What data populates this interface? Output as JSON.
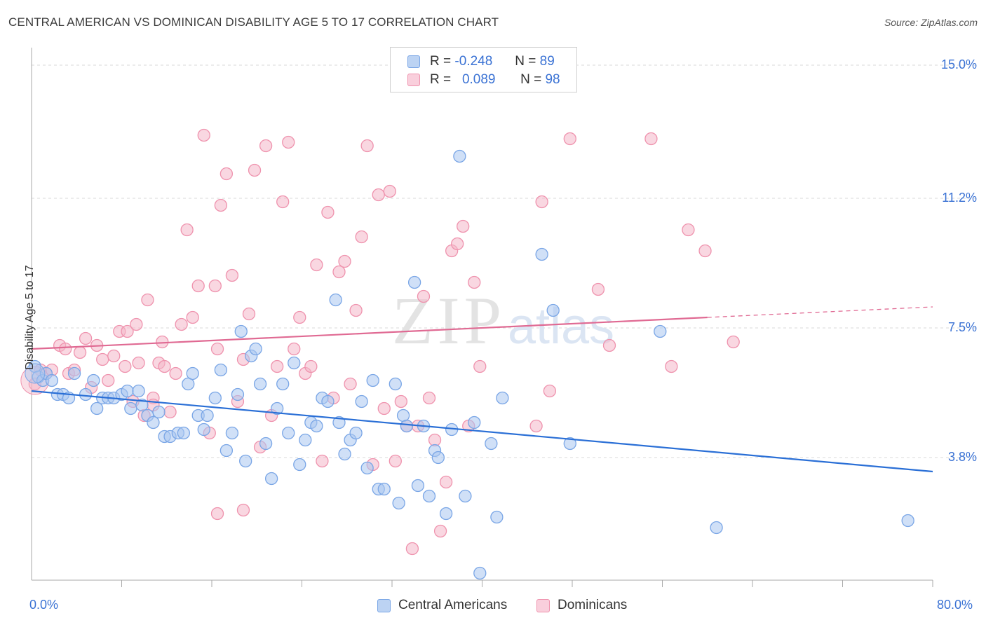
{
  "header": {
    "title": "CENTRAL AMERICAN VS DOMINICAN DISABILITY AGE 5 TO 17 CORRELATION CHART",
    "source": "Source: ZipAtlas.com"
  },
  "watermark": {
    "zip": "ZIP",
    "atlas": "atlas"
  },
  "legend": {
    "rows": [
      {
        "r_label": "R =",
        "r_value": "-0.248",
        "n_label": "N =",
        "n_value": "89",
        "color": "#a9c6f0"
      },
      {
        "r_label": "R =",
        "r_value": "0.089",
        "n_label": "N =",
        "n_value": "98",
        "color": "#f4b6c8"
      }
    ]
  },
  "bottom_legend": [
    {
      "label": "Central Americans",
      "color": "#a9c6f0"
    },
    {
      "label": "Dominicans",
      "color": "#f4b6c8"
    }
  ],
  "chart_data": {
    "type": "scatter",
    "title": "CENTRAL AMERICAN VS DOMINICAN DISABILITY AGE 5 TO 17 CORRELATION CHART",
    "xlabel": "",
    "ylabel": "Disability Age 5 to 17",
    "xlim": [
      0,
      80
    ],
    "ylim": [
      0.3,
      15.3
    ],
    "x_tick_labels": [
      "0.0%",
      "80.0%"
    ],
    "y_ticks": [
      3.8,
      7.5,
      11.2,
      15.0
    ],
    "y_tick_labels": [
      "3.8%",
      "7.5%",
      "11.2%",
      "15.0%"
    ],
    "grid": true,
    "series": [
      {
        "name": "Central Americans",
        "color": "#7aa6e6",
        "fill": "#a9c6f0",
        "line_color": "#2a6fd6",
        "trend": {
          "x": [
            0,
            80
          ],
          "y": [
            5.7,
            3.4
          ]
        },
        "points": [
          [
            0.3,
            6.4
          ],
          [
            0.6,
            6.1
          ],
          [
            1.0,
            6.0
          ],
          [
            1.3,
            6.2
          ],
          [
            1.8,
            6.0
          ],
          [
            2.3,
            5.6
          ],
          [
            2.8,
            5.6
          ],
          [
            3.3,
            5.5
          ],
          [
            3.8,
            6.2
          ],
          [
            4.8,
            5.6
          ],
          [
            5.5,
            6.0
          ],
          [
            5.8,
            5.2
          ],
          [
            6.3,
            5.5
          ],
          [
            6.8,
            5.5
          ],
          [
            7.3,
            5.5
          ],
          [
            8.0,
            5.6
          ],
          [
            8.5,
            5.7
          ],
          [
            8.8,
            5.2
          ],
          [
            9.5,
            5.7
          ],
          [
            9.8,
            5.3
          ],
          [
            10.3,
            5.0
          ],
          [
            10.8,
            4.8
          ],
          [
            11.3,
            5.1
          ],
          [
            11.8,
            4.4
          ],
          [
            12.3,
            4.4
          ],
          [
            13.0,
            4.5
          ],
          [
            13.5,
            4.5
          ],
          [
            13.9,
            5.9
          ],
          [
            14.3,
            6.2
          ],
          [
            14.8,
            5.0
          ],
          [
            15.3,
            4.6
          ],
          [
            15.6,
            5.0
          ],
          [
            16.3,
            5.5
          ],
          [
            16.8,
            6.3
          ],
          [
            17.3,
            4.0
          ],
          [
            17.8,
            4.5
          ],
          [
            18.3,
            5.6
          ],
          [
            18.6,
            7.4
          ],
          [
            19.0,
            3.7
          ],
          [
            19.5,
            6.7
          ],
          [
            19.9,
            6.9
          ],
          [
            20.3,
            5.9
          ],
          [
            20.8,
            4.2
          ],
          [
            21.3,
            3.2
          ],
          [
            21.8,
            5.2
          ],
          [
            22.3,
            5.9
          ],
          [
            22.8,
            4.5
          ],
          [
            23.3,
            6.5
          ],
          [
            23.8,
            3.6
          ],
          [
            24.3,
            4.3
          ],
          [
            24.8,
            4.8
          ],
          [
            25.3,
            4.7
          ],
          [
            25.8,
            5.5
          ],
          [
            26.3,
            5.4
          ],
          [
            27.0,
            8.3
          ],
          [
            27.3,
            4.8
          ],
          [
            27.8,
            3.9
          ],
          [
            28.3,
            4.3
          ],
          [
            28.8,
            4.5
          ],
          [
            29.3,
            5.4
          ],
          [
            29.8,
            3.5
          ],
          [
            30.3,
            6.0
          ],
          [
            30.8,
            2.9
          ],
          [
            31.3,
            2.9
          ],
          [
            32.3,
            5.9
          ],
          [
            32.6,
            2.5
          ],
          [
            33.0,
            5.0
          ],
          [
            33.3,
            4.7
          ],
          [
            34.0,
            8.8
          ],
          [
            34.3,
            3.0
          ],
          [
            34.8,
            4.7
          ],
          [
            35.3,
            2.7
          ],
          [
            35.8,
            4.0
          ],
          [
            36.1,
            3.8
          ],
          [
            36.8,
            2.2
          ],
          [
            37.3,
            4.6
          ],
          [
            38.0,
            12.4
          ],
          [
            38.5,
            2.7
          ],
          [
            39.3,
            4.8
          ],
          [
            39.8,
            0.5
          ],
          [
            40.8,
            4.2
          ],
          [
            41.3,
            2.1
          ],
          [
            41.8,
            5.5
          ],
          [
            45.3,
            9.6
          ],
          [
            46.3,
            8.0
          ],
          [
            47.8,
            4.2
          ],
          [
            55.8,
            7.4
          ],
          [
            60.8,
            1.8
          ],
          [
            77.8,
            2.0
          ]
        ]
      },
      {
        "name": "Dominicans",
        "color": "#ef93ae",
        "fill": "#f4b6c8",
        "line_color": "#e06a93",
        "trend": {
          "x": [
            0,
            60
          ],
          "y": [
            6.9,
            7.8
          ]
        },
        "trend_dashed": {
          "x": [
            60,
            80
          ],
          "y": [
            7.8,
            8.1
          ]
        },
        "points": [
          [
            0.3,
            5.9
          ],
          [
            0.8,
            6.3
          ],
          [
            1.3,
            6.2
          ],
          [
            1.8,
            6.3
          ],
          [
            2.5,
            7.0
          ],
          [
            3.0,
            6.9
          ],
          [
            3.3,
            6.2
          ],
          [
            3.8,
            6.3
          ],
          [
            4.3,
            6.8
          ],
          [
            4.8,
            7.2
          ],
          [
            5.3,
            5.8
          ],
          [
            5.8,
            7.0
          ],
          [
            6.3,
            6.6
          ],
          [
            6.8,
            6.0
          ],
          [
            7.3,
            6.7
          ],
          [
            7.8,
            7.4
          ],
          [
            8.3,
            6.4
          ],
          [
            8.5,
            7.4
          ],
          [
            9.0,
            5.4
          ],
          [
            9.3,
            7.6
          ],
          [
            9.5,
            6.5
          ],
          [
            10.0,
            5.0
          ],
          [
            10.3,
            8.3
          ],
          [
            10.8,
            5.5
          ],
          [
            11.3,
            6.5
          ],
          [
            11.6,
            7.1
          ],
          [
            11.8,
            6.4
          ],
          [
            12.3,
            5.1
          ],
          [
            12.8,
            6.2
          ],
          [
            13.3,
            7.6
          ],
          [
            13.8,
            10.3
          ],
          [
            14.3,
            7.8
          ],
          [
            14.8,
            8.7
          ],
          [
            15.3,
            13.0
          ],
          [
            15.8,
            4.5
          ],
          [
            16.3,
            8.7
          ],
          [
            16.5,
            6.9
          ],
          [
            16.8,
            11.0
          ],
          [
            17.3,
            11.9
          ],
          [
            17.8,
            9.0
          ],
          [
            18.3,
            5.4
          ],
          [
            18.8,
            6.6
          ],
          [
            19.3,
            7.9
          ],
          [
            19.8,
            12.0
          ],
          [
            20.3,
            4.1
          ],
          [
            20.8,
            12.7
          ],
          [
            21.3,
            5.0
          ],
          [
            21.8,
            6.4
          ],
          [
            22.3,
            11.1
          ],
          [
            22.8,
            12.8
          ],
          [
            23.3,
            6.9
          ],
          [
            23.8,
            7.8
          ],
          [
            24.3,
            6.2
          ],
          [
            24.8,
            6.4
          ],
          [
            25.3,
            9.3
          ],
          [
            25.8,
            3.7
          ],
          [
            26.3,
            10.8
          ],
          [
            26.8,
            5.5
          ],
          [
            27.3,
            9.1
          ],
          [
            27.8,
            9.4
          ],
          [
            28.3,
            5.9
          ],
          [
            28.8,
            8.0
          ],
          [
            29.3,
            10.1
          ],
          [
            29.8,
            12.7
          ],
          [
            30.3,
            3.6
          ],
          [
            30.8,
            11.3
          ],
          [
            31.3,
            5.2
          ],
          [
            31.8,
            11.4
          ],
          [
            32.3,
            3.7
          ],
          [
            32.8,
            5.4
          ],
          [
            33.3,
            4.7
          ],
          [
            33.8,
            1.2
          ],
          [
            34.3,
            4.7
          ],
          [
            34.8,
            8.4
          ],
          [
            35.3,
            5.5
          ],
          [
            35.8,
            4.3
          ],
          [
            36.3,
            1.7
          ],
          [
            36.8,
            3.1
          ],
          [
            37.3,
            9.7
          ],
          [
            37.8,
            9.9
          ],
          [
            38.3,
            10.4
          ],
          [
            38.8,
            4.7
          ],
          [
            39.3,
            8.8
          ],
          [
            39.8,
            6.4
          ],
          [
            44.8,
            4.7
          ],
          [
            45.3,
            11.1
          ],
          [
            46.0,
            5.7
          ],
          [
            47.8,
            12.9
          ],
          [
            50.3,
            8.6
          ],
          [
            51.3,
            7.0
          ],
          [
            55.0,
            12.9
          ],
          [
            56.8,
            6.4
          ],
          [
            58.3,
            10.3
          ],
          [
            59.8,
            9.7
          ],
          [
            62.3,
            7.1
          ],
          [
            16.5,
            2.2
          ],
          [
            18.8,
            2.3
          ],
          [
            10.8,
            5.3
          ]
        ]
      }
    ]
  }
}
